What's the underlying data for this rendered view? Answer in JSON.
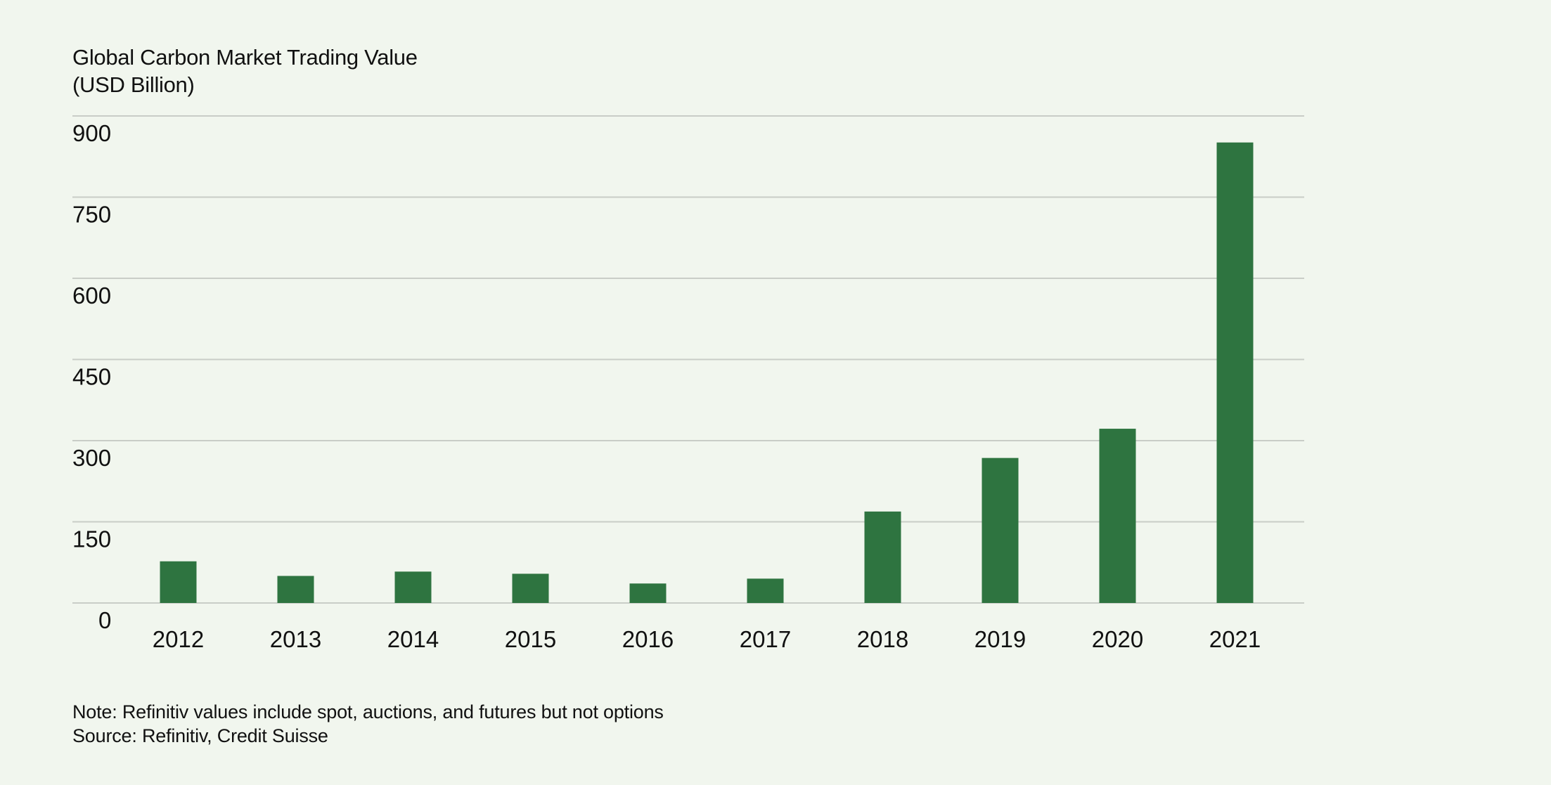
{
  "chart_data": {
    "type": "bar",
    "title": "Global Carbon Market Trading Value",
    "subtitle": "(USD Billion)",
    "xlabel": "",
    "ylabel": "",
    "categories": [
      "2012",
      "2013",
      "2014",
      "2015",
      "2016",
      "2017",
      "2018",
      "2019",
      "2020",
      "2021"
    ],
    "values": [
      77,
      50,
      58,
      54,
      36,
      45,
      169,
      268,
      322,
      851
    ],
    "ylim": [
      0,
      900
    ],
    "yticks": [
      0,
      150,
      300,
      450,
      600,
      750,
      900
    ],
    "grid": true,
    "legend": "none",
    "colors": {
      "bar": "#2e7440",
      "grid": "#c9cdc7",
      "background": "#f1f6ee",
      "text": "#111111"
    }
  },
  "footer": {
    "note": "Note: Refinitiv values include spot, auctions, and futures but not options",
    "source": "Source: Refinitiv, Credit Suisse"
  }
}
